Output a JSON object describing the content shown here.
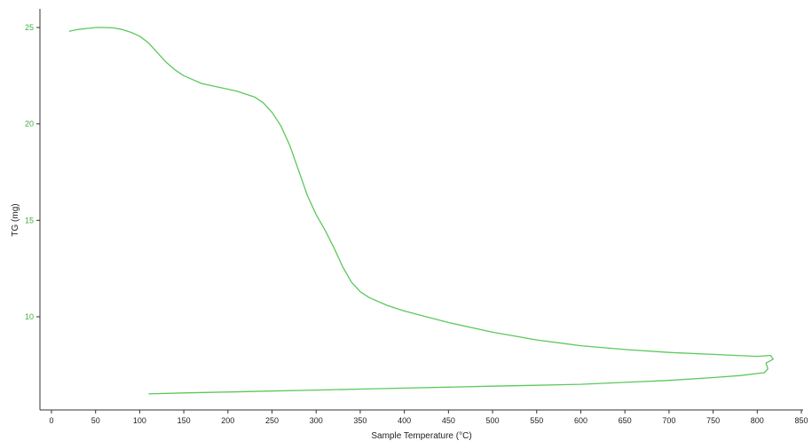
{
  "chart_data": {
    "type": "line",
    "title": "",
    "xlabel": "Sample Temperature (°C)",
    "ylabel": "TG (mg)",
    "xlim": [
      0,
      850
    ],
    "ylim": [
      5,
      25
    ],
    "x_ticks": [
      "0",
      "50",
      "100",
      "150",
      "200",
      "250",
      "300",
      "350",
      "400",
      "450",
      "500",
      "550",
      "600",
      "650",
      "700",
      "750",
      "800",
      "850"
    ],
    "y_ticks": [
      "10",
      "15",
      "20",
      "25"
    ],
    "grid": false,
    "line_color": "#5cc85c",
    "series": [
      {
        "points": [
          [
            20,
            24.8
          ],
          [
            30,
            24.9
          ],
          [
            40,
            24.95
          ],
          [
            50,
            25.0
          ],
          [
            60,
            25.0
          ],
          [
            70,
            24.98
          ],
          [
            80,
            24.9
          ],
          [
            90,
            24.75
          ],
          [
            100,
            24.55
          ],
          [
            110,
            24.2
          ],
          [
            120,
            23.7
          ],
          [
            130,
            23.2
          ],
          [
            140,
            22.8
          ],
          [
            150,
            22.5
          ],
          [
            160,
            22.3
          ],
          [
            170,
            22.1
          ],
          [
            180,
            22.0
          ],
          [
            190,
            21.9
          ],
          [
            200,
            21.8
          ],
          [
            210,
            21.7
          ],
          [
            220,
            21.55
          ],
          [
            230,
            21.4
          ],
          [
            240,
            21.1
          ],
          [
            250,
            20.6
          ],
          [
            260,
            19.9
          ],
          [
            270,
            18.9
          ],
          [
            280,
            17.6
          ],
          [
            290,
            16.3
          ],
          [
            300,
            15.3
          ],
          [
            310,
            14.5
          ],
          [
            320,
            13.6
          ],
          [
            330,
            12.6
          ],
          [
            340,
            11.8
          ],
          [
            350,
            11.3
          ],
          [
            360,
            11.0
          ],
          [
            380,
            10.6
          ],
          [
            400,
            10.3
          ],
          [
            450,
            9.7
          ],
          [
            500,
            9.2
          ],
          [
            550,
            8.8
          ],
          [
            600,
            8.5
          ],
          [
            650,
            8.3
          ],
          [
            700,
            8.15
          ],
          [
            750,
            8.05
          ],
          [
            800,
            7.95
          ],
          [
            815,
            8.0
          ],
          [
            818,
            7.8
          ],
          [
            810,
            7.6
          ],
          [
            812,
            7.3
          ],
          [
            808,
            7.1
          ],
          [
            780,
            6.95
          ],
          [
            750,
            6.85
          ],
          [
            700,
            6.7
          ],
          [
            650,
            6.6
          ],
          [
            600,
            6.5
          ],
          [
            550,
            6.45
          ],
          [
            500,
            6.4
          ],
          [
            450,
            6.35
          ],
          [
            400,
            6.3
          ],
          [
            350,
            6.25
          ],
          [
            300,
            6.2
          ],
          [
            250,
            6.15
          ],
          [
            200,
            6.1
          ],
          [
            150,
            6.05
          ],
          [
            110,
            6.0
          ]
        ]
      }
    ]
  }
}
